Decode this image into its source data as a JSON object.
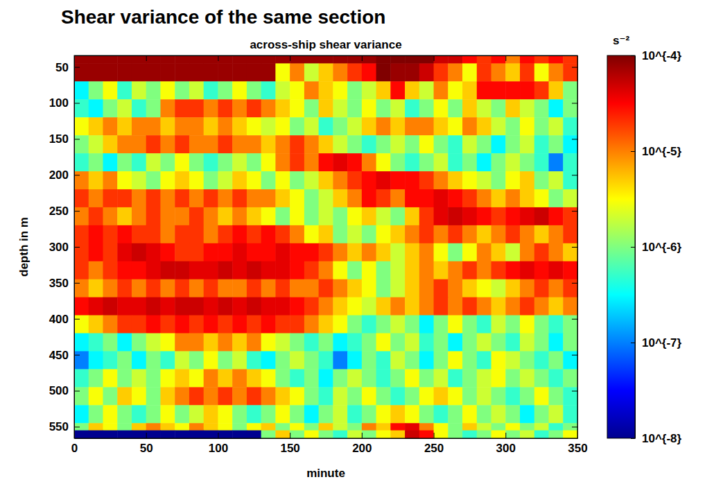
{
  "header": {
    "title": "Shear variance of the same section"
  },
  "chart_data": {
    "type": "heatmap",
    "title": "across-ship shear variance",
    "x_label": "minute",
    "y_label": "depth in m",
    "xlim": [
      0,
      350
    ],
    "ylim": [
      34,
      566
    ],
    "xticks": [
      0,
      50,
      100,
      150,
      200,
      250,
      300,
      350
    ],
    "yticks": [
      50,
      100,
      150,
      200,
      250,
      300,
      350,
      400,
      450,
      500,
      550
    ],
    "x_bins": [
      0,
      10,
      20,
      30,
      40,
      50,
      60,
      70,
      80,
      90,
      100,
      110,
      120,
      130,
      140,
      150,
      160,
      170,
      180,
      190,
      200,
      210,
      220,
      230,
      240,
      250,
      260,
      270,
      280,
      290,
      300,
      310,
      320,
      330,
      340,
      350
    ],
    "y_bins": [
      34,
      45,
      70,
      95,
      120,
      145,
      170,
      195,
      220,
      245,
      270,
      295,
      320,
      345,
      370,
      395,
      420,
      445,
      470,
      495,
      520,
      545,
      555,
      566
    ],
    "color_range": [
      1e-08,
      0.0001
    ],
    "color_ticks": [
      {
        "value": 0.0001,
        "label": "10^{-4}"
      },
      {
        "value": 1e-05,
        "label": "10^{-5}"
      },
      {
        "value": 1e-06,
        "label": "10^{-6}"
      },
      {
        "value": 1e-07,
        "label": "10^{-7}"
      },
      {
        "value": 1e-08,
        "label": "10^{-8}"
      }
    ],
    "color_label": "s⁻²",
    "cells": [
      [
        8e-05,
        8e-05,
        8e-05,
        8e-05,
        8e-05,
        8e-05,
        8e-05,
        8e-05,
        8e-05,
        8e-05,
        8e-05,
        8e-05,
        8e-05,
        8e-05,
        8e-05,
        8e-05,
        8e-05,
        8e-05,
        8e-05,
        8e-05,
        8e-05,
        0.0001,
        0.0001,
        0.0001,
        0.0001,
        5e-05,
        5e-05,
        3e-05,
        2e-05,
        3e-05,
        1e-05,
        3e-05,
        2e-05,
        3e-05,
        2e-05
      ],
      [
        8e-05,
        8e-05,
        8e-05,
        8e-05,
        8e-05,
        8e-05,
        8e-05,
        8e-05,
        8e-05,
        8e-05,
        8e-05,
        8e-05,
        8e-05,
        8e-05,
        3e-06,
        1e-05,
        2e-06,
        5e-06,
        1e-05,
        2e-05,
        3e-05,
        0.0001,
        8e-05,
        8e-05,
        5e-05,
        2e-05,
        1e-05,
        3e-06,
        2e-05,
        1e-05,
        5e-06,
        2e-05,
        3e-06,
        1e-05,
        2e-05
      ],
      [
        3e-07,
        1e-06,
        3e-06,
        5e-07,
        2e-06,
        1e-06,
        3e-06,
        1e-06,
        2e-06,
        5e-07,
        1e-06,
        3e-06,
        1e-06,
        5e-07,
        2e-06,
        3e-06,
        1e-05,
        5e-06,
        3e-06,
        1e-06,
        2e-06,
        5e-06,
        3e-05,
        5e-06,
        2e-06,
        1e-05,
        3e-06,
        5e-06,
        3e-05,
        3e-05,
        3e-05,
        3e-05,
        2e-05,
        5e-06,
        1e-06
      ],
      [
        5e-07,
        3e-07,
        1e-06,
        2e-06,
        5e-07,
        1e-06,
        1e-05,
        2e-05,
        2e-05,
        1e-05,
        2e-05,
        1e-05,
        2e-05,
        1e-05,
        5e-06,
        3e-06,
        1e-06,
        5e-06,
        2e-06,
        1e-06,
        3e-06,
        1e-06,
        2e-06,
        5e-07,
        1e-06,
        3e-06,
        1e-06,
        5e-06,
        2e-06,
        1e-06,
        5e-06,
        2e-06,
        1e-06,
        3e-07,
        1e-06
      ],
      [
        3e-06,
        5e-06,
        1e-05,
        5e-06,
        1e-05,
        1e-05,
        5e-06,
        1e-05,
        1e-05,
        5e-06,
        1e-05,
        5e-06,
        3e-06,
        2e-06,
        3e-06,
        1e-06,
        2e-06,
        5e-07,
        1e-06,
        2e-06,
        5e-06,
        1e-05,
        5e-06,
        1e-05,
        1e-05,
        5e-06,
        3e-06,
        1e-05,
        5e-06,
        2e-06,
        1e-06,
        3e-06,
        1e-06,
        2e-06,
        5e-07
      ],
      [
        1e-06,
        2e-06,
        5e-06,
        1e-05,
        1e-05,
        2e-05,
        1e-05,
        2e-05,
        1e-05,
        1e-05,
        2e-05,
        1e-05,
        1e-05,
        5e-06,
        1e-05,
        2e-05,
        1e-05,
        5e-06,
        2e-06,
        1e-06,
        5e-07,
        1e-06,
        2e-06,
        1e-06,
        3e-06,
        1e-06,
        5e-07,
        2e-06,
        1e-06,
        3e-07,
        1e-06,
        2e-06,
        5e-07,
        1e-06,
        3e-07
      ],
      [
        5e-07,
        1e-06,
        3e-07,
        1e-06,
        5e-07,
        2e-06,
        1e-06,
        3e-06,
        1e-06,
        5e-07,
        1e-06,
        2e-06,
        1e-06,
        3e-06,
        1e-05,
        2e-05,
        1e-05,
        3e-05,
        4e-05,
        3e-05,
        1e-05,
        3e-06,
        1e-06,
        5e-07,
        1e-06,
        2e-06,
        5e-07,
        1e-06,
        3e-07,
        1e-06,
        2e-06,
        1e-06,
        5e-07,
        1e-07,
        5e-07
      ],
      [
        1e-05,
        5e-06,
        1e-05,
        3e-06,
        2e-06,
        1e-06,
        3e-06,
        5e-06,
        3e-06,
        1e-06,
        2e-06,
        5e-06,
        3e-06,
        1e-06,
        3e-06,
        1e-06,
        2e-06,
        5e-06,
        1e-05,
        2e-05,
        3e-05,
        4e-05,
        3e-05,
        3e-05,
        2e-05,
        1e-05,
        5e-06,
        3e-06,
        2e-06,
        1e-06,
        3e-06,
        5e-06,
        1e-06,
        2e-06,
        5e-07
      ],
      [
        2e-05,
        1e-05,
        2e-05,
        2e-05,
        1e-05,
        2e-05,
        1e-05,
        2e-05,
        1e-05,
        2e-05,
        1e-05,
        2e-05,
        1e-05,
        1e-05,
        5e-06,
        3e-06,
        1e-06,
        2e-06,
        5e-06,
        1e-05,
        3e-05,
        2e-05,
        1e-05,
        3e-05,
        3e-05,
        4e-05,
        3e-05,
        2e-05,
        1e-05,
        5e-06,
        1e-05,
        5e-06,
        3e-06,
        1e-06,
        2e-06
      ],
      [
        1e-05,
        2e-05,
        1e-05,
        5e-06,
        1e-05,
        2e-05,
        1e-05,
        1e-05,
        2e-05,
        1e-05,
        5e-06,
        1e-05,
        5e-06,
        3e-06,
        1e-06,
        3e-06,
        1e-06,
        2e-06,
        1e-06,
        3e-06,
        5e-06,
        2e-06,
        1e-06,
        5e-06,
        2e-05,
        4e-05,
        5e-05,
        4e-05,
        3e-05,
        2e-05,
        3e-05,
        4e-05,
        5e-05,
        3e-05,
        2e-05
      ],
      [
        2e-05,
        3e-05,
        2e-05,
        3e-05,
        2e-05,
        2e-05,
        1e-05,
        2e-05,
        2e-05,
        1e-05,
        2e-05,
        3e-05,
        2e-05,
        3e-05,
        2e-05,
        1e-05,
        3e-06,
        5e-06,
        1e-06,
        2e-06,
        1e-06,
        3e-06,
        5e-06,
        1e-05,
        2e-05,
        1e-05,
        2e-05,
        1e-05,
        5e-06,
        1e-05,
        2e-05,
        1e-05,
        5e-06,
        1e-05,
        2e-05
      ],
      [
        2e-05,
        3e-05,
        2e-05,
        4e-05,
        5e-05,
        4e-05,
        3e-05,
        2e-05,
        2e-05,
        3e-05,
        3e-05,
        4e-05,
        3e-05,
        3e-05,
        4e-05,
        3e-05,
        3e-05,
        2e-05,
        1e-05,
        5e-06,
        1e-05,
        5e-06,
        2e-06,
        5e-06,
        1e-05,
        3e-06,
        1e-06,
        3e-06,
        1e-05,
        5e-06,
        2e-06,
        1e-05,
        2e-05,
        1e-05,
        5e-06
      ],
      [
        2e-05,
        1e-05,
        2e-05,
        3e-05,
        3e-05,
        4e-05,
        5e-05,
        5e-05,
        4e-05,
        4e-05,
        5e-05,
        4e-05,
        5e-05,
        4e-05,
        4e-05,
        3e-05,
        2e-05,
        1e-05,
        3e-06,
        1e-06,
        3e-06,
        1e-06,
        2e-06,
        5e-06,
        1e-05,
        5e-06,
        1e-05,
        2e-05,
        1e-05,
        2e-05,
        3e-05,
        4e-05,
        3e-05,
        4e-05,
        3e-05
      ],
      [
        1e-05,
        5e-06,
        1e-05,
        2e-05,
        1e-05,
        2e-05,
        1e-05,
        2e-05,
        1e-05,
        2e-05,
        1e-05,
        1e-05,
        2e-05,
        1e-05,
        2e-05,
        1e-05,
        1e-05,
        2e-05,
        1e-05,
        5e-06,
        3e-06,
        1e-06,
        2e-06,
        5e-06,
        1e-05,
        2e-05,
        1e-05,
        5e-06,
        3e-06,
        2e-06,
        5e-06,
        1e-05,
        2e-05,
        1e-05,
        2e-05
      ],
      [
        3e-05,
        4e-05,
        5e-05,
        4e-05,
        4e-05,
        5e-05,
        4e-05,
        5e-05,
        5e-05,
        4e-05,
        5e-05,
        4e-05,
        5e-05,
        4e-05,
        4e-05,
        3e-05,
        2e-05,
        1e-05,
        5e-06,
        3e-06,
        2e-06,
        5e-06,
        1e-05,
        5e-06,
        1e-05,
        2e-05,
        1e-05,
        2e-05,
        1e-05,
        5e-06,
        1e-05,
        2e-05,
        1e-05,
        5e-06,
        1e-05
      ],
      [
        3e-06,
        5e-06,
        1e-05,
        2e-05,
        2e-05,
        3e-05,
        2e-05,
        3e-05,
        2e-05,
        3e-05,
        2e-05,
        3e-05,
        2e-05,
        3e-05,
        2e-05,
        2e-05,
        1e-05,
        5e-06,
        3e-06,
        1e-06,
        5e-07,
        1e-06,
        2e-06,
        1e-06,
        3e-07,
        1e-06,
        3e-06,
        1e-06,
        5e-07,
        2e-06,
        1e-06,
        3e-06,
        1e-06,
        5e-07,
        1e-06
      ],
      [
        3e-07,
        5e-07,
        1e-06,
        3e-07,
        1e-06,
        2e-06,
        3e-06,
        1e-05,
        1e-05,
        5e-06,
        1e-05,
        5e-06,
        1e-05,
        3e-06,
        2e-06,
        1e-06,
        5e-07,
        1e-06,
        3e-07,
        5e-07,
        1e-06,
        3e-06,
        1e-06,
        2e-06,
        5e-07,
        1e-06,
        3e-07,
        1e-06,
        2e-06,
        1e-06,
        5e-07,
        2e-06,
        1e-06,
        3e-07,
        1e-06
      ],
      [
        1e-07,
        3e-07,
        5e-07,
        1e-06,
        3e-07,
        1e-06,
        5e-07,
        2e-06,
        1e-06,
        3e-06,
        1e-06,
        2e-06,
        5e-07,
        3e-07,
        1e-06,
        2e-06,
        1e-06,
        5e-07,
        1e-07,
        3e-07,
        1e-06,
        5e-07,
        2e-06,
        1e-06,
        3e-07,
        1e-06,
        3e-06,
        1e-06,
        5e-07,
        3e-06,
        2e-06,
        1e-06,
        5e-07,
        1e-06,
        3e-07
      ],
      [
        5e-07,
        1e-06,
        3e-06,
        1e-06,
        2e-06,
        1e-06,
        3e-06,
        5e-06,
        3e-06,
        1e-05,
        5e-06,
        1e-05,
        5e-06,
        3e-06,
        1e-06,
        5e-07,
        1e-06,
        3e-07,
        1e-06,
        2e-06,
        1e-06,
        5e-07,
        1e-06,
        3e-06,
        1e-06,
        2e-06,
        5e-07,
        1e-06,
        2e-06,
        3e-06,
        1e-06,
        2e-06,
        1e-06,
        5e-07,
        1e-06
      ],
      [
        1e-06,
        3e-06,
        1e-06,
        5e-06,
        3e-06,
        1e-06,
        5e-06,
        1e-05,
        2e-05,
        1e-05,
        2e-05,
        1e-05,
        2e-05,
        1e-05,
        5e-06,
        3e-06,
        1e-06,
        5e-07,
        2e-06,
        1e-06,
        3e-06,
        1e-06,
        5e-07,
        1e-06,
        3e-06,
        5e-06,
        3e-06,
        1e-06,
        2e-06,
        1e-06,
        5e-07,
        1e-06,
        3e-06,
        1e-06,
        5e-07
      ],
      [
        3e-07,
        1e-06,
        3e-06,
        1e-06,
        5e-07,
        1e-06,
        3e-06,
        1e-06,
        2e-06,
        5e-06,
        3e-06,
        1e-06,
        5e-07,
        1e-06,
        3e-06,
        1e-06,
        3e-07,
        1e-06,
        2e-06,
        5e-07,
        1e-06,
        3e-06,
        5e-06,
        3e-06,
        1e-06,
        5e-07,
        1e-06,
        3e-06,
        1e-06,
        2e-06,
        1e-06,
        3e-07,
        1e-06,
        2e-06,
        5e-07
      ],
      [
        1e-06,
        5e-06,
        3e-06,
        1e-06,
        5e-06,
        1e-05,
        5e-06,
        3e-06,
        1e-05,
        5e-06,
        3e-06,
        1e-06,
        3e-06,
        5e-06,
        1e-06,
        3e-06,
        1e-06,
        5e-06,
        2e-06,
        1e-06,
        1e-05,
        5e-06,
        3e-05,
        4e-05,
        1e-05,
        3e-06,
        1e-06,
        5e-06,
        2e-06,
        1e-06,
        3e-06,
        1e-06,
        2e-06,
        5e-07,
        1e-06
      ],
      [
        1e-08,
        1e-08,
        1e-08,
        1e-08,
        1e-08,
        1e-08,
        1e-08,
        1e-08,
        1e-08,
        1e-08,
        1e-08,
        1e-08,
        1e-08,
        1e-06,
        5e-06,
        1e-06,
        3e-06,
        1e-06,
        5e-07,
        2e-06,
        1e-06,
        3e-06,
        5e-06,
        5e-05,
        3e-05,
        3e-06,
        1e-06,
        5e-07,
        1e-06,
        3e-06,
        1e-06,
        2e-06,
        5e-07,
        1e-06,
        3e-06
      ]
    ]
  }
}
